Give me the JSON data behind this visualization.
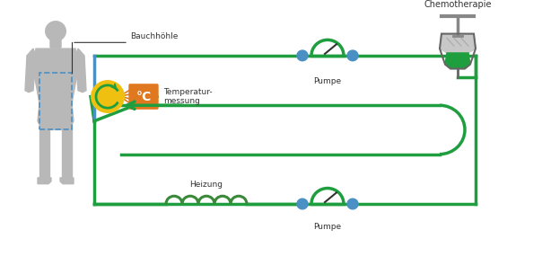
{
  "green": "#1e9e3e",
  "blue": "#4a90c4",
  "orange": "#e07820",
  "yellow": "#f0c010",
  "gray_body": "#b8b8b8",
  "gray_light": "#d0d0d0",
  "lw": 2.5,
  "label_bauchhohle": "Bauchhöhle",
  "label_temperatur": "Temperatur-\nmessung",
  "label_heizung": "Heizung",
  "label_pumpe1": "Pumpe",
  "label_pumpe2": "Pumpe",
  "label_chemo": "Chemotherapie",
  "fig_w": 6.04,
  "fig_h": 2.95,
  "dpi": 100
}
